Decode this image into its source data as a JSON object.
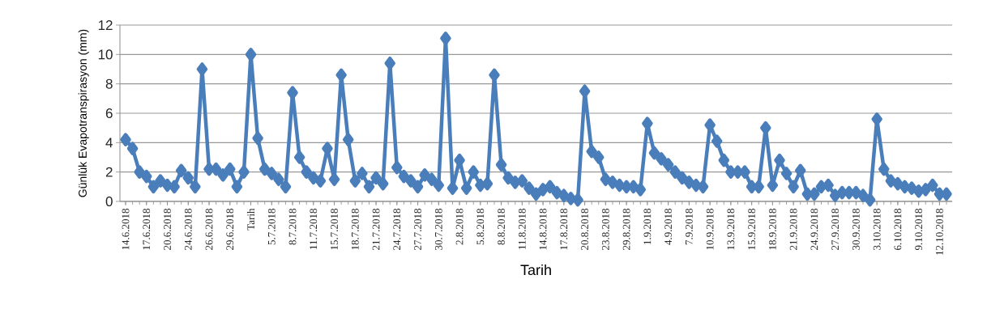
{
  "chart_data": {
    "type": "line",
    "xlabel": "Tarih",
    "ylabel": "Günlük Evapotranspirasyon (mm)",
    "categories": [
      "14.6.2018",
      null,
      null,
      "17.6.2018",
      null,
      null,
      "20.6.2018",
      null,
      null,
      "24.6.2018",
      null,
      null,
      "26.6.2018",
      null,
      null,
      "29.6.2018",
      null,
      null,
      "Tarih",
      null,
      null,
      "5.7.2018",
      null,
      null,
      "8.7.2018",
      null,
      null,
      "11.7.2018",
      null,
      null,
      "15.7.2018",
      null,
      null,
      "18.7.2018",
      null,
      null,
      "21.7.2018",
      null,
      null,
      "24.7.2018",
      null,
      null,
      "27.7.2018",
      null,
      null,
      "30.7.2018",
      null,
      null,
      "2.8.2018",
      null,
      null,
      "5.8.2018",
      null,
      null,
      "8.8.2018",
      null,
      null,
      "11.8.2018",
      null,
      null,
      "14.8.2018",
      null,
      null,
      "17.8.2018",
      null,
      null,
      "20.8.2018",
      null,
      null,
      "23.8.2018",
      null,
      null,
      "29.8.2018",
      null,
      null,
      "1.9.2018",
      null,
      null,
      "4.9.2018",
      null,
      null,
      "7.9.2018",
      null,
      null,
      "10.9.2018",
      null,
      null,
      "13.9.2018",
      null,
      null,
      "15.9.2018",
      null,
      null,
      "18.9.2018",
      null,
      null,
      "21.9.2018",
      null,
      null,
      "24.9.2018",
      null,
      null,
      "27.9.2018",
      null,
      null,
      "30.9.2018",
      null,
      null,
      "3.10.2018",
      null,
      null,
      "6.10.2018",
      null,
      null,
      "9.10.2018",
      null,
      null,
      "12.10.2018",
      null
    ],
    "values": [
      4.2,
      3.6,
      2.0,
      1.7,
      1.0,
      1.4,
      1.1,
      1.0,
      2.1,
      1.6,
      1.0,
      9.0,
      2.2,
      2.2,
      1.8,
      2.2,
      1.0,
      2.0,
      10.0,
      4.3,
      2.2,
      1.9,
      1.5,
      1.0,
      7.4,
      3.0,
      2.0,
      1.6,
      1.4,
      3.6,
      1.5,
      8.6,
      4.2,
      1.4,
      1.9,
      1.0,
      1.6,
      1.2,
      9.4,
      2.3,
      1.7,
      1.4,
      1.0,
      1.8,
      1.5,
      1.1,
      11.1,
      0.9,
      2.8,
      0.9,
      2.0,
      1.1,
      1.2,
      8.6,
      2.5,
      1.6,
      1.3,
      1.4,
      0.9,
      0.5,
      0.8,
      1.0,
      0.6,
      0.4,
      0.2,
      0.1,
      7.5,
      3.4,
      3.0,
      1.5,
      1.3,
      1.1,
      1.0,
      1.0,
      0.8,
      5.3,
      3.3,
      2.9,
      2.5,
      2.0,
      1.6,
      1.3,
      1.1,
      1.0,
      5.2,
      4.1,
      2.8,
      2.0,
      2.0,
      2.0,
      1.0,
      1.0,
      5.0,
      1.1,
      2.8,
      1.9,
      1.0,
      2.1,
      0.5,
      0.5,
      1.0,
      1.1,
      0.4,
      0.6,
      0.6,
      0.6,
      0.4,
      0.1,
      5.6,
      2.2,
      1.4,
      1.2,
      1.0,
      0.9,
      0.7,
      0.8,
      1.1,
      0.5,
      0.5
    ],
    "color": "#4a7ebb",
    "marker": "diamond",
    "line_style": "solid",
    "ylim": [
      0,
      12
    ],
    "yticks": [
      0,
      2,
      4,
      6,
      8,
      10,
      12
    ],
    "grid": "y"
  }
}
